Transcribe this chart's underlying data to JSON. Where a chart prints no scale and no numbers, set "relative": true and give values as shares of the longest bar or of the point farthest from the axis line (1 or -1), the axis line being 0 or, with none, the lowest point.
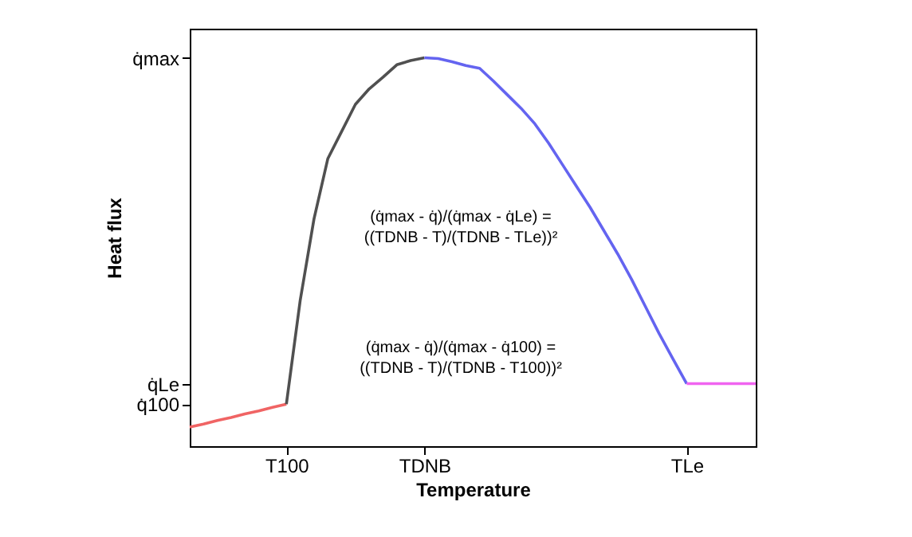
{
  "chart_data": {
    "type": "line",
    "relative": true,
    "xlabel": "Temperature",
    "ylabel": "Heat flux",
    "categories": [
      null,
      null,
      null,
      null,
      null,
      null,
      null,
      "T100",
      null,
      null,
      null,
      null,
      null,
      null,
      null,
      null,
      null,
      "TDNB",
      null,
      null,
      null,
      null,
      null,
      null,
      null,
      null,
      null,
      null,
      null,
      null,
      null,
      null,
      null,
      null,
      null,
      null,
      "TLe",
      null,
      null,
      null,
      null,
      null
    ],
    "series": [
      {
        "color": "#f06464",
        "values": [
          0.049,
          0.057,
          0.066,
          0.074,
          0.083,
          0.091,
          0.1,
          0.108,
          null,
          null,
          null,
          null,
          null,
          null,
          null,
          null,
          null,
          null,
          null,
          null,
          null,
          null,
          null,
          null,
          null,
          null,
          null,
          null,
          null,
          null,
          null,
          null,
          null,
          null,
          null,
          null,
          null,
          null,
          null,
          null,
          null,
          null
        ]
      },
      {
        "color": "#505050",
        "values": [
          null,
          null,
          null,
          null,
          null,
          null,
          null,
          0.108,
          0.375,
          0.585,
          0.74,
          0.81,
          0.88,
          0.92,
          0.95,
          0.982,
          0.993,
          1,
          null,
          null,
          null,
          null,
          null,
          null,
          null,
          null,
          null,
          null,
          null,
          null,
          null,
          null,
          null,
          null,
          null,
          null,
          null,
          null,
          null,
          null,
          null,
          null
        ]
      },
      {
        "color": "#6464f0",
        "values": [
          null,
          null,
          null,
          null,
          null,
          null,
          null,
          null,
          null,
          null,
          null,
          null,
          null,
          null,
          null,
          null,
          null,
          1,
          0.998,
          0.99,
          0.98,
          0.973,
          0.94,
          0.905,
          0.87,
          0.83,
          0.78,
          0.725,
          0.67,
          0.615,
          0.555,
          0.495,
          0.43,
          0.36,
          0.29,
          0.225,
          0.161,
          null,
          null,
          null,
          null,
          null
        ]
      },
      {
        "color": "#f064f0",
        "values": [
          null,
          null,
          null,
          null,
          null,
          null,
          null,
          null,
          null,
          null,
          null,
          null,
          null,
          null,
          null,
          null,
          null,
          null,
          null,
          null,
          null,
          null,
          null,
          null,
          null,
          null,
          null,
          null,
          null,
          null,
          null,
          null,
          null,
          null,
          null,
          null,
          0.161,
          0.161,
          0.161,
          0.161,
          0.161,
          0.161
        ]
      }
    ],
    "annotations": [
      "q̇100",
      "q̇Le",
      "q̇max",
      "(q̇max - q̇)/(q̇max - q̇100) = ((TDNB - T)/(TDNB - T100))²",
      "(q̇max - q̇)/(q̇max - q̇Le) = ((TDNB - T)/(TDNB - TLe))²"
    ],
    "grid": false,
    "marker": "none",
    "line_style": "solid"
  }
}
